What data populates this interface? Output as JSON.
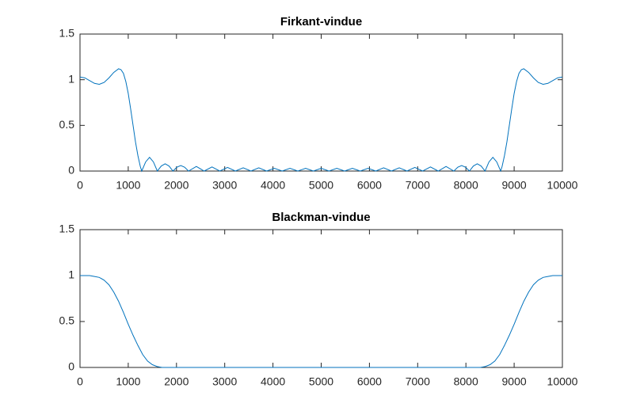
{
  "chart_data": [
    {
      "type": "line",
      "title": "Firkant-vindue",
      "color": "#0072bd",
      "x": [
        0,
        100,
        200,
        300,
        400,
        500,
        600,
        700,
        800,
        850,
        900,
        950,
        1000,
        1050,
        1100,
        1150,
        1200,
        1250,
        1280,
        1361,
        1442,
        1522,
        1603,
        1684,
        1765,
        1846,
        1927,
        2008,
        2089,
        2169,
        2250,
        2412,
        2574,
        2736,
        2897,
        3059,
        3221,
        3383,
        3544,
        3706,
        3868,
        4030,
        4191,
        4353,
        4515,
        4677,
        4838,
        5000,
        5162,
        5324,
        5485,
        5647,
        5809,
        5971,
        6132,
        6294,
        6456,
        6618,
        6779,
        6941,
        7103,
        7265,
        7426,
        7588,
        7750,
        7831,
        7912,
        7992,
        8073,
        8154,
        8235,
        8316,
        8397,
        8478,
        8559,
        8639,
        8720,
        8750,
        8800,
        8850,
        8900,
        8950,
        9000,
        9050,
        9100,
        9150,
        9200,
        9300,
        9400,
        9500,
        9600,
        9700,
        9800,
        9900,
        10000
      ],
      "values": [
        1.03,
        1.02,
        0.99,
        0.96,
        0.95,
        0.97,
        1.02,
        1.08,
        1.12,
        1.11,
        1.07,
        0.98,
        0.85,
        0.68,
        0.5,
        0.32,
        0.17,
        0.05,
        0,
        0.1,
        0.15,
        0.1,
        0,
        0.055,
        0.08,
        0.055,
        0,
        0.042,
        0.06,
        0.042,
        0,
        0.05,
        0,
        0.045,
        0,
        0.04,
        0,
        0.035,
        0,
        0.035,
        0,
        0.03,
        0,
        0.03,
        0,
        0.03,
        0,
        0.03,
        0,
        0.03,
        0,
        0.03,
        0,
        0.03,
        0,
        0.035,
        0,
        0.035,
        0,
        0.04,
        0,
        0.045,
        0,
        0.05,
        0,
        0.042,
        0.06,
        0.042,
        0,
        0.055,
        0.08,
        0.055,
        0,
        0.1,
        0.15,
        0.1,
        0,
        0.05,
        0.17,
        0.32,
        0.5,
        0.68,
        0.85,
        0.98,
        1.07,
        1.11,
        1.12,
        1.08,
        1.02,
        0.97,
        0.95,
        0.96,
        0.99,
        1.02,
        1.03
      ],
      "xlim": [
        0,
        10000
      ],
      "ylim": [
        0,
        1.5
      ],
      "xticks": [
        0,
        1000,
        2000,
        3000,
        4000,
        5000,
        6000,
        7000,
        8000,
        9000,
        10000
      ],
      "yticks": [
        0,
        0.5,
        1,
        1.5
      ]
    },
    {
      "type": "line",
      "title": "Blackman-vindue",
      "color": "#0072bd",
      "x": [
        0,
        200,
        300,
        400,
        500,
        600,
        700,
        800,
        900,
        1000,
        1100,
        1200,
        1300,
        1400,
        1500,
        1600,
        1700,
        1800,
        8200,
        8300,
        8400,
        8500,
        8600,
        8700,
        8800,
        8900,
        9000,
        9100,
        9200,
        9300,
        9400,
        9500,
        9600,
        9700,
        9800,
        10000
      ],
      "values": [
        1,
        1,
        0.99,
        0.98,
        0.95,
        0.9,
        0.82,
        0.72,
        0.6,
        0.47,
        0.35,
        0.24,
        0.14,
        0.07,
        0.03,
        0.01,
        0,
        0,
        0,
        0,
        0.01,
        0.03,
        0.07,
        0.14,
        0.24,
        0.35,
        0.47,
        0.6,
        0.72,
        0.82,
        0.9,
        0.95,
        0.98,
        0.99,
        1,
        1
      ],
      "xlim": [
        0,
        10000
      ],
      "ylim": [
        0,
        1.5
      ],
      "xticks": [
        0,
        1000,
        2000,
        3000,
        4000,
        5000,
        6000,
        7000,
        8000,
        9000,
        10000
      ],
      "yticks": [
        0,
        0.5,
        1,
        1.5
      ]
    }
  ]
}
